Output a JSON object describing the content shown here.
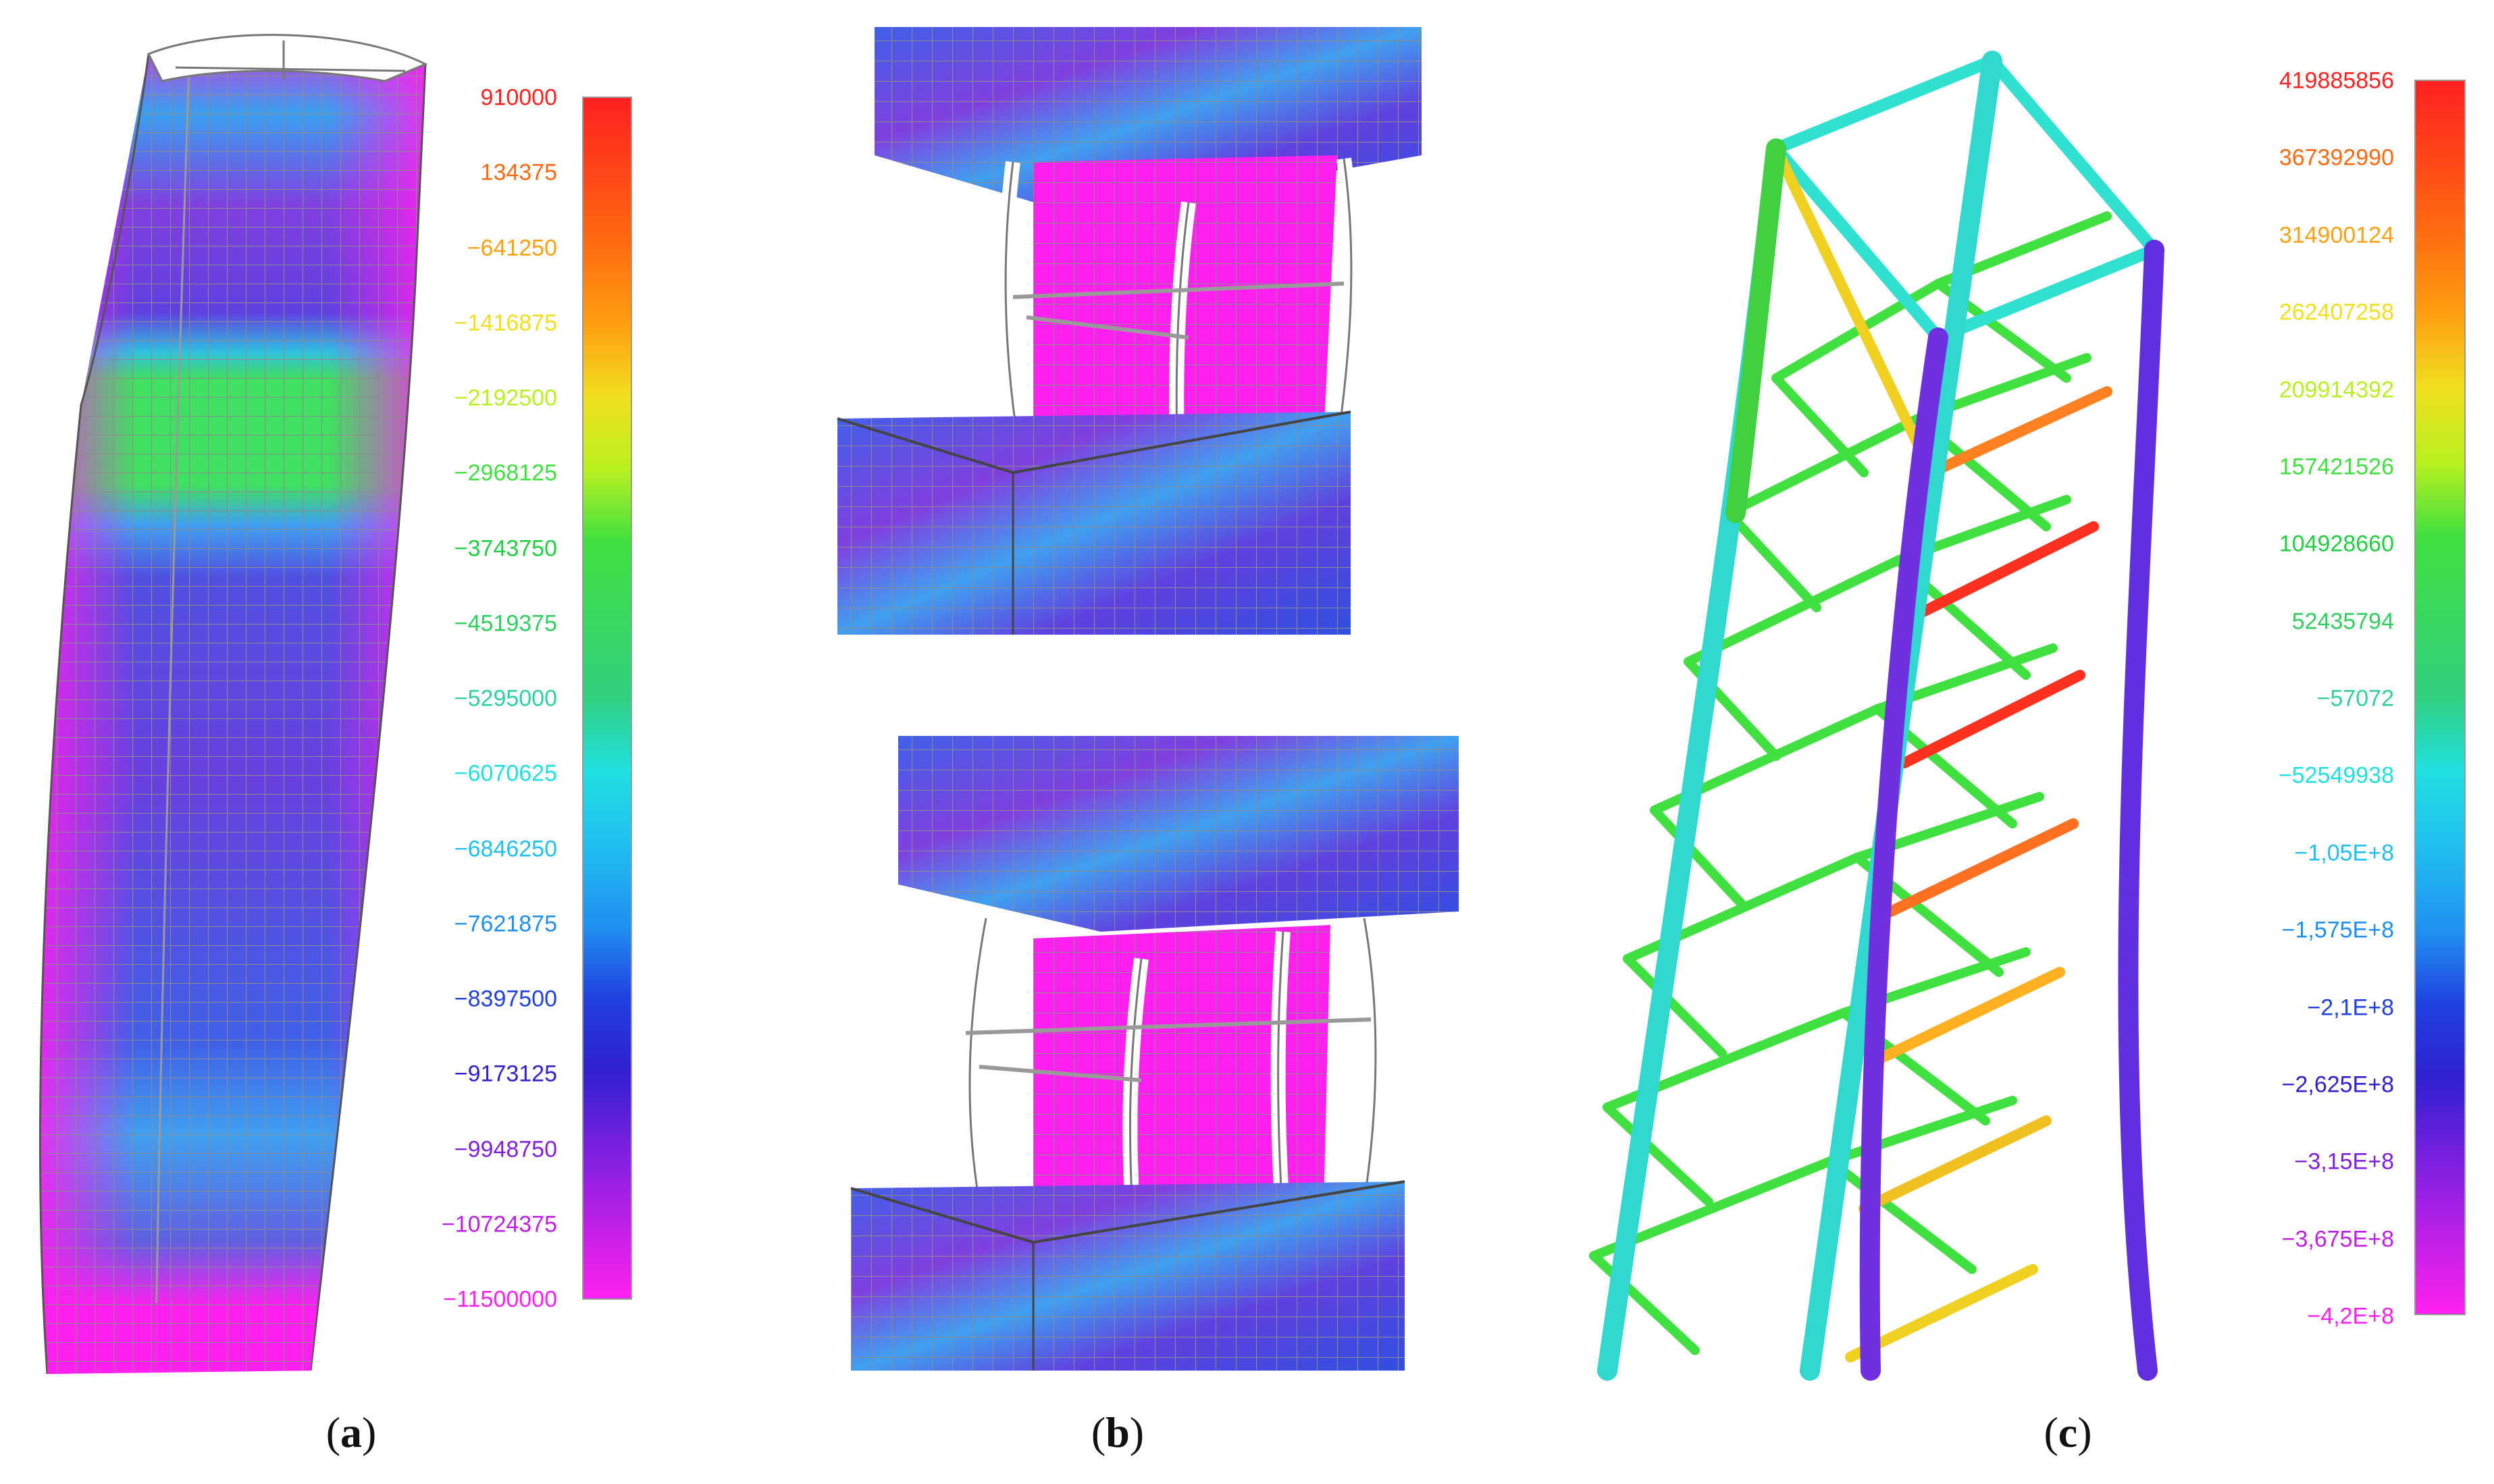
{
  "panels": [
    {
      "id": "a",
      "caption_open": "(",
      "caption_letter": "a",
      "caption_close": ")",
      "legend": [
        "910000",
        "134375",
        "−641250",
        "−1416875",
        "−2192500",
        "−2968125",
        "−3743750",
        "−4519375",
        "−5295000",
        "−6070625",
        "−6846250",
        "−7621875",
        "−8397500",
        "−9173125",
        "−9948750",
        "−10724375",
        "−11500000"
      ]
    },
    {
      "id": "b",
      "caption_open": "(",
      "caption_letter": "b",
      "caption_close": ")"
    },
    {
      "id": "c",
      "caption_open": "(",
      "caption_letter": "c",
      "caption_close": ")",
      "legend": [
        "419885856",
        "367392990",
        "314900124",
        "262407258",
        "209914392",
        "157421526",
        "104928660",
        "52435794",
        "−57072",
        "−52549938",
        "−1,05E+8",
        "−1,575E+8",
        "−2,1E+8",
        "−2,625E+8",
        "−3,15E+8",
        "−3,675E+8",
        "−4,2E+8"
      ]
    }
  ],
  "colormap": [
    "#ff2020",
    "#ff6a10",
    "#ffa010",
    "#f0e020",
    "#b8f020",
    "#40e040",
    "#20d040",
    "#30d060",
    "#30d0a0",
    "#20e0e0",
    "#20c0f0",
    "#2090f0",
    "#2040e0",
    "#3020d0",
    "#8020e0",
    "#c020e8",
    "#ff20f0"
  ]
}
